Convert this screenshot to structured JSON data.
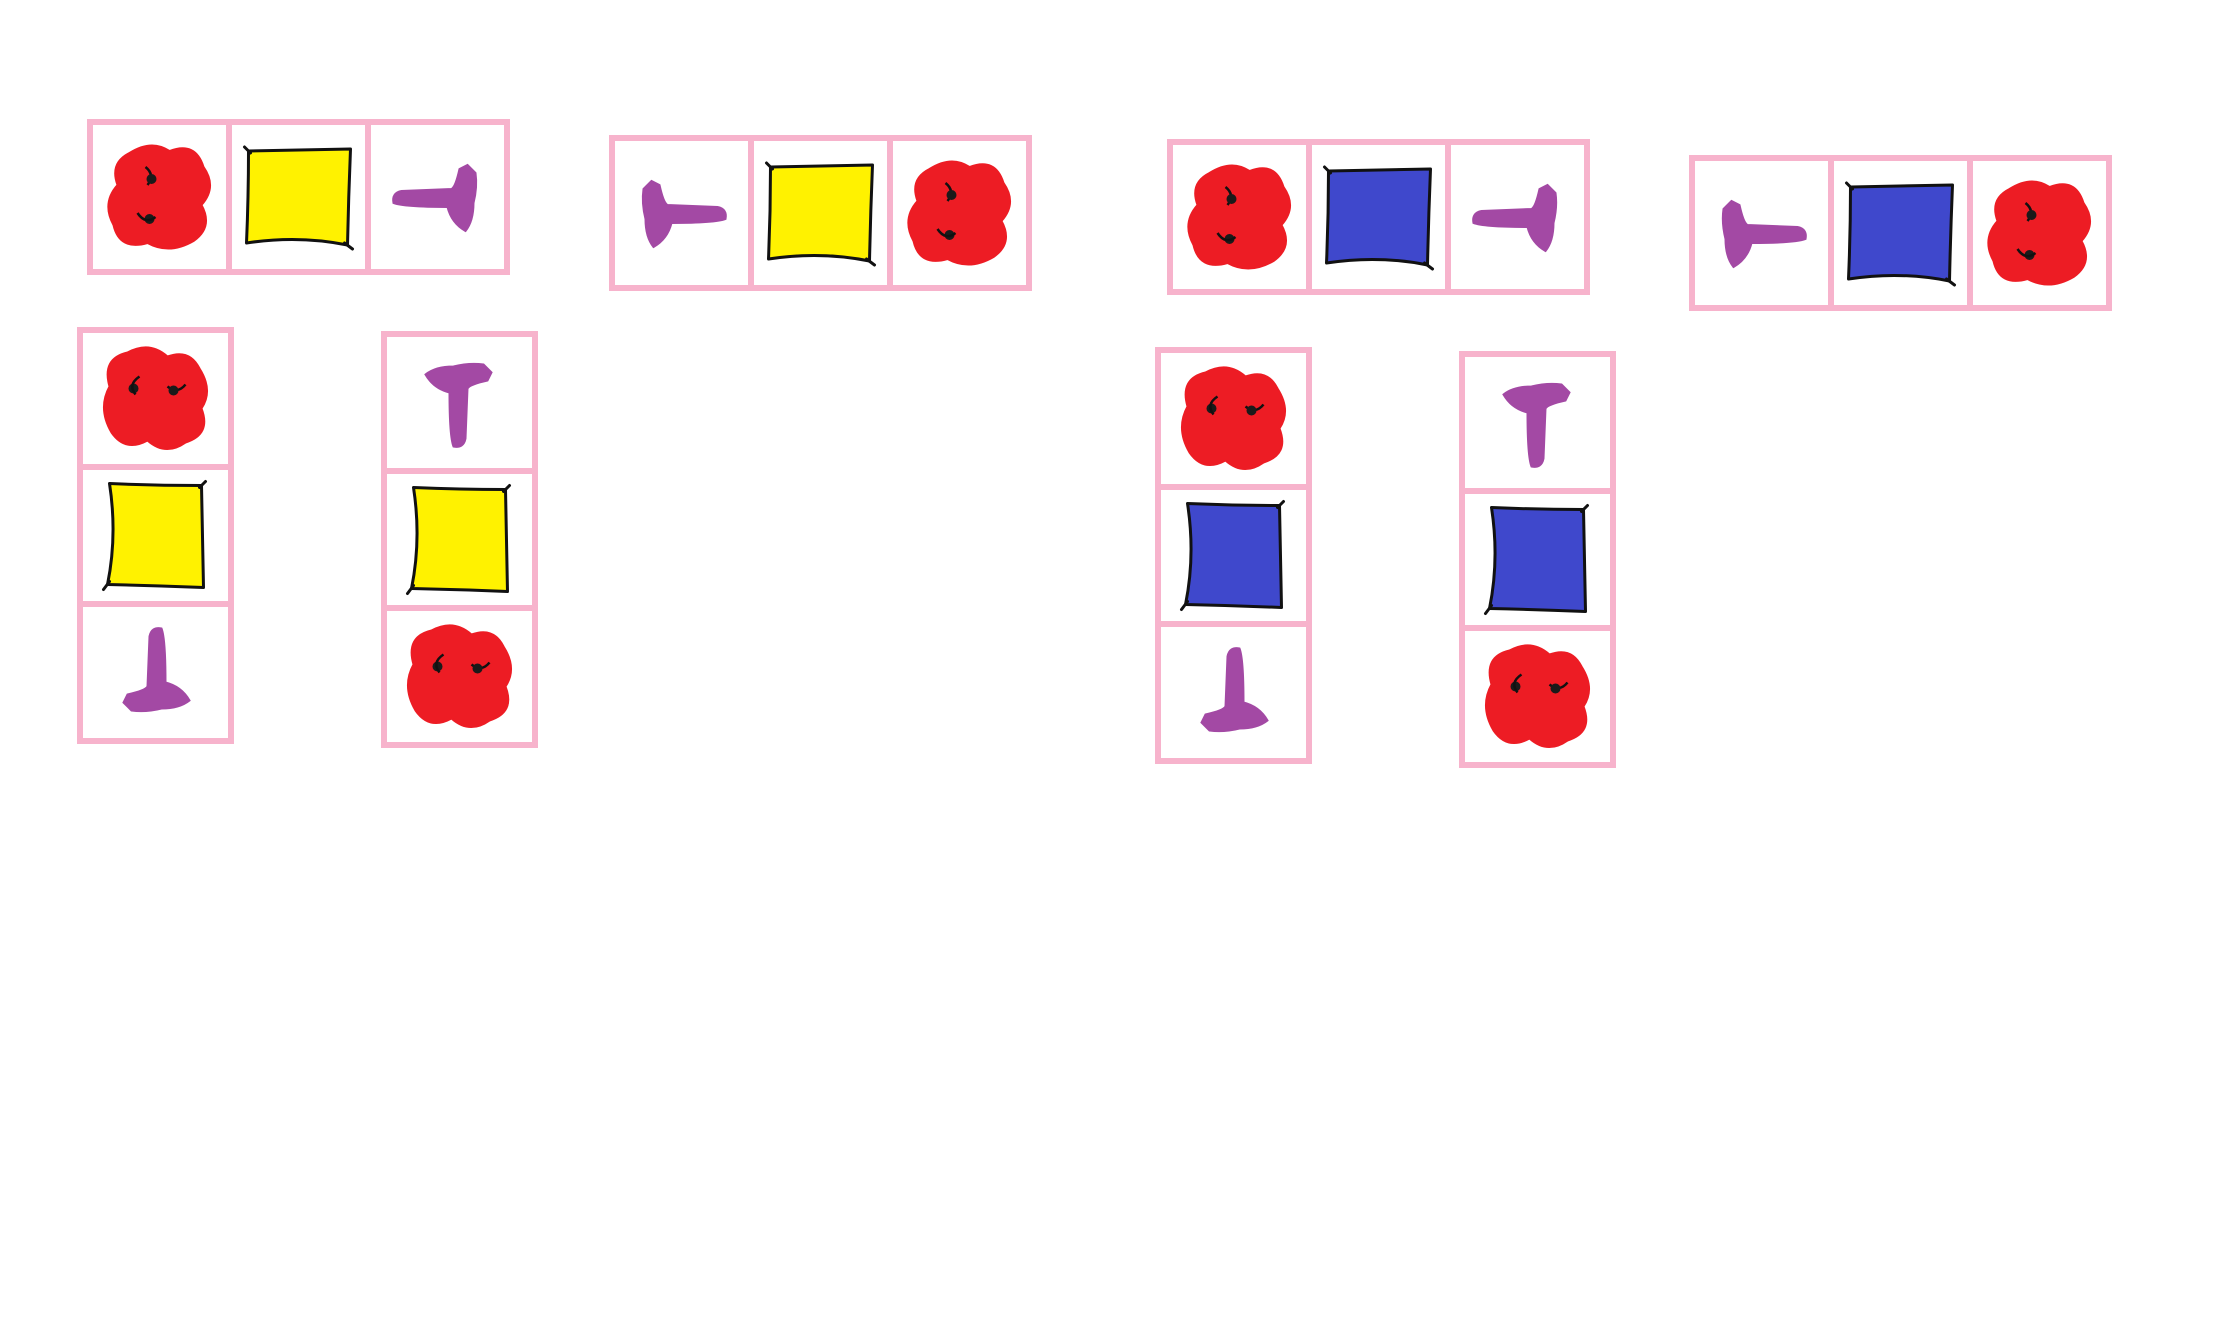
{
  "colors": {
    "background": "#ffffff",
    "frame": "#f7b3cc",
    "blob": "#ed1c24",
    "square_yellow": "#fff200",
    "square_blue": "#3f48cc",
    "tee": "#a349a4",
    "outline": "#111111"
  },
  "strips": [
    {
      "id": "yellow-row-1",
      "orientation": "horizontal",
      "cells": [
        "red-blob-icon",
        "yellow-square-icon",
        "purple-tee-icon"
      ]
    },
    {
      "id": "yellow-row-2",
      "orientation": "horizontal",
      "cells": [
        "purple-tee-icon",
        "yellow-square-icon",
        "red-blob-icon"
      ]
    },
    {
      "id": "blue-row-1",
      "orientation": "horizontal",
      "cells": [
        "red-blob-icon",
        "blue-square-icon",
        "purple-tee-icon"
      ]
    },
    {
      "id": "blue-row-2",
      "orientation": "horizontal",
      "cells": [
        "purple-tee-icon",
        "blue-square-icon",
        "red-blob-icon"
      ]
    },
    {
      "id": "yellow-column-1",
      "orientation": "vertical",
      "cells": [
        "red-blob-icon",
        "yellow-square-icon",
        "purple-tee-icon"
      ]
    },
    {
      "id": "yellow-column-2",
      "orientation": "vertical",
      "cells": [
        "purple-tee-icon",
        "yellow-square-icon",
        "red-blob-icon"
      ]
    },
    {
      "id": "blue-column-1",
      "orientation": "vertical",
      "cells": [
        "red-blob-icon",
        "blue-square-icon",
        "purple-tee-icon"
      ]
    },
    {
      "id": "blue-column-2",
      "orientation": "vertical",
      "cells": [
        "purple-tee-icon",
        "blue-square-icon",
        "red-blob-icon"
      ]
    }
  ]
}
